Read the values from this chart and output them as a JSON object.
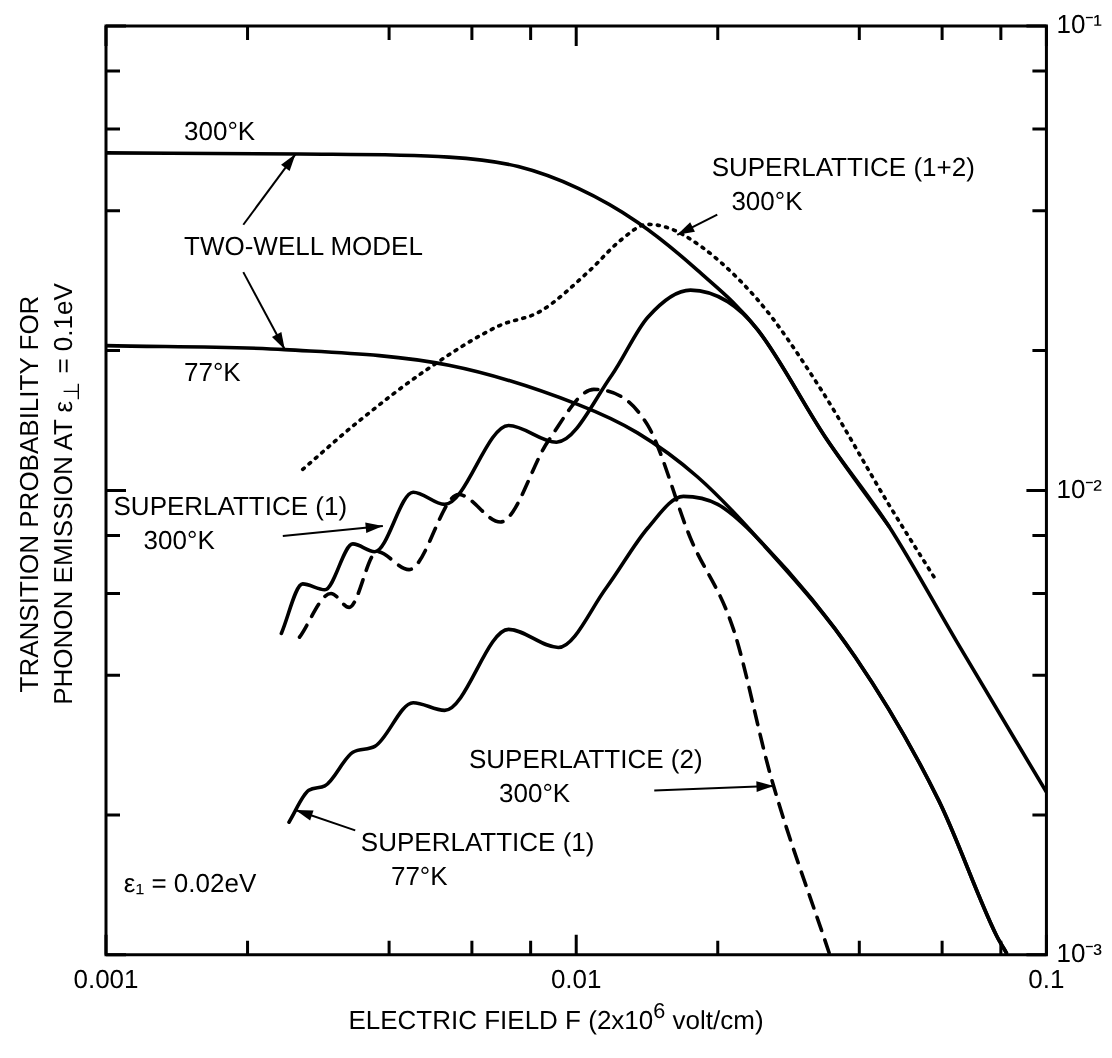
{
  "chart_data": {
    "type": "line",
    "xlabel": "ELECTRIC FIELD F   (2x10$^{6}$ volt/cm)",
    "ylabel": "TRANSITION PROBABILITY FOR\nPHONON EMISSION AT ε$_{⊥}$ = 0.1eV",
    "log": "xy",
    "marker": "none",
    "xlim": [
      0.001,
      0.1
    ],
    "xticks": [
      0.001,
      {
        "value": 0.002,
        "label": null
      },
      {
        "value": 0.004,
        "label": null
      },
      {
        "value": 0.006,
        "label": null
      },
      {
        "value": 0.008,
        "label": null
      },
      0.01,
      {
        "value": 0.02,
        "label": null
      },
      {
        "value": 0.04,
        "label": null
      },
      {
        "value": 0.06,
        "label": null
      },
      {
        "value": 0.08,
        "label": null
      },
      0.1
    ],
    "ylim": [
      0.001,
      0.1
    ],
    "yticks": [
      {
        "value": 0.001,
        "label": "10⁻³"
      },
      {
        "value": 0.002,
        "label": null
      },
      {
        "value": 0.004,
        "label": null
      },
      {
        "value": 0.006,
        "label": null
      },
      {
        "value": 0.008,
        "label": null
      },
      {
        "value": 0.01,
        "label": "10⁻²"
      },
      {
        "value": 0.02,
        "label": null
      },
      {
        "value": 0.04,
        "label": null
      },
      {
        "value": 0.06,
        "label": null
      },
      {
        "value": 0.08,
        "label": null
      },
      {
        "value": 0.1,
        "label": "10⁻¹"
      }
    ],
    "series": [
      {
        "color": "#000000",
        "line_style": "solid",
        "x": [
          0.001,
          0.00258,
          0.00536,
          0.00753,
          0.0101,
          0.0135,
          0.0181,
          0.0243,
          0.0339,
          0.0462,
          0.0644,
          0.1
        ],
        "values": [
          0.0533,
          0.053,
          0.0522,
          0.0498,
          0.0447,
          0.0378,
          0.0298,
          0.0222,
          0.013,
          0.00838,
          0.00473,
          0.00224
        ]
      },
      {
        "color": "#000000",
        "line_style": "solid",
        "x": [
          0.001,
          0.0024,
          0.00536,
          0.0101,
          0.0135,
          0.0181,
          0.0243,
          0.0392,
          0.059,
          0.0783,
          0.0822
        ],
        "values": [
          0.0205,
          0.0201,
          0.0186,
          0.0153,
          0.0133,
          0.0107,
          0.00789,
          0.00438,
          0.00215,
          0.0011,
          0.00101
        ]
      },
      {
        "color": "#000000",
        "line_style": "dotted",
        "x": [
          0.00262,
          0.00345,
          0.00481,
          0.00684,
          0.00839,
          0.0107,
          0.0124,
          0.0142,
          0.0169,
          0.0241,
          0.0329,
          0.0462,
          0.0585
        ],
        "values": [
          0.0111,
          0.0141,
          0.0182,
          0.0226,
          0.0243,
          0.0298,
          0.0345,
          0.0374,
          0.0355,
          0.026,
          0.0167,
          0.00933,
          0.00636
        ]
      },
      {
        "color": "#000000",
        "line_style": "solid",
        "x": [
          0.00236,
          0.00262,
          0.00292,
          0.00335,
          0.00373,
          0.0045,
          0.00525,
          0.00718,
          0.00908,
          0.0119,
          0.0142,
          0.0175,
          0.021,
          0.0243,
          0.0339,
          0.0462
        ],
        "values": [
          0.00492,
          0.00629,
          0.00611,
          0.00767,
          0.00738,
          0.00991,
          0.00933,
          0.0138,
          0.0127,
          0.0177,
          0.0236,
          0.027,
          0.0255,
          0.0222,
          0.013,
          0.00838
        ]
      },
      {
        "color": "#000000",
        "line_style": "dashed",
        "x": [
          0.00258,
          0.00301,
          0.00329,
          0.00377,
          0.00441,
          0.00562,
          0.0069,
          0.00873,
          0.0109,
          0.0142,
          0.0175,
          0.0216,
          0.026,
          0.0345
        ],
        "values": [
          0.00483,
          0.006,
          0.0056,
          0.00738,
          0.00675,
          0.0098,
          0.00855,
          0.0128,
          0.0165,
          0.0138,
          0.00789,
          0.00502,
          0.0024,
          0.00101
        ]
      },
      {
        "color": "#000000",
        "line_style": "solid",
        "x": [
          0.00245,
          0.0027,
          0.00292,
          0.00335,
          0.00373,
          0.0045,
          0.00525,
          0.00718,
          0.00916,
          0.0116,
          0.0142,
          0.0169,
          0.02,
          0.0243,
          0.0392,
          0.059,
          0.0783,
          0.0822
        ],
        "values": [
          0.00193,
          0.00226,
          0.00231,
          0.00273,
          0.00281,
          0.00349,
          0.00336,
          0.00502,
          0.00459,
          0.00618,
          0.0083,
          0.00971,
          0.00933,
          0.00789,
          0.00438,
          0.00215,
          0.0011,
          0.00101
        ]
      }
    ],
    "annotations": [
      "300°K",
      {
        "text": "TWO-WELL MODEL",
        "x": 0.00253,
        "y": 0.053
      },
      "77°K",
      {
        "text": "SUPERLATTICE (1+2)\n300°K",
        "x": 0.0164,
        "y": 0.0355
      },
      {
        "text": "SUPERLATTICE (1)\n300°K",
        "x": 0.00388,
        "y": 0.00838
      },
      {
        "text": "SUPERLATTICE (2)\n300°K",
        "x": 0.0263,
        "y": 0.00231
      },
      {
        "text": "SUPERLATTICE (1)\n77°K",
        "x": 0.00253,
        "y": 0.00205
      },
      "ε₁ = 0.02eV"
    ]
  }
}
